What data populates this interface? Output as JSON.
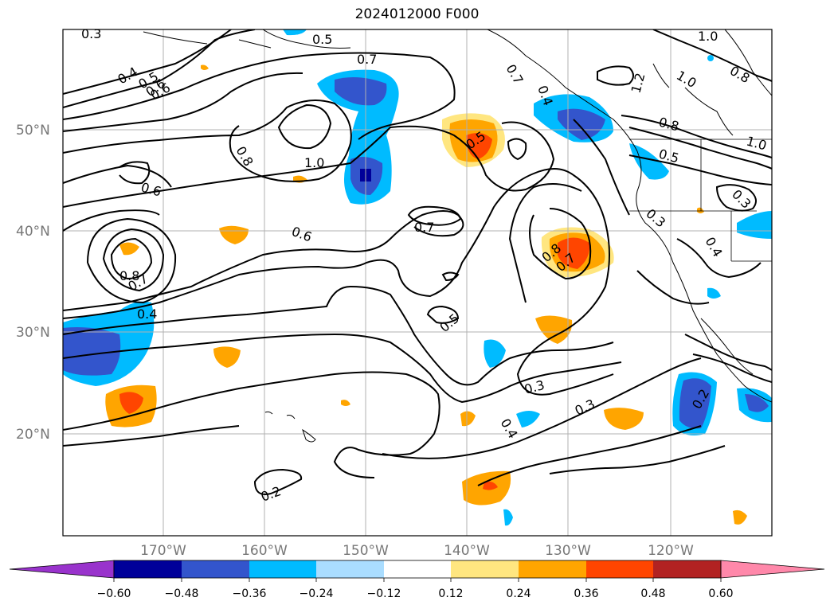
{
  "title": "2024012000 F000",
  "lat_labels": [
    "50°N",
    "40°N",
    "30°N",
    "20°N"
  ],
  "lon_labels": [
    "170°W",
    "160°W",
    "150°W",
    "140°W",
    "130°W",
    "120°W"
  ],
  "contour_labels": [
    "0.3",
    "0.5",
    "0.6",
    "0.4",
    "0.5",
    "0.6",
    "0.7",
    "0.8",
    "1.0",
    "0.6",
    "0.6",
    "0.7",
    "0.8",
    "0.7",
    "0.4",
    "0.5",
    "0.5",
    "0.8",
    "0.7",
    "0.3",
    "0.4",
    "0.3",
    "0.2",
    "0.2",
    "0.7",
    "0.4",
    "1.2",
    "1.0",
    "1.0",
    "0.8",
    "0.8",
    "0.5",
    "1.0",
    "0.3",
    "0.3",
    "0.4"
  ],
  "colorbar": {
    "colors": [
      "#9933cc",
      "#000099",
      "#3355cc",
      "#00bbff",
      "#aaddff",
      "#ffffff",
      "#ffe680",
      "#ffa500",
      "#ff4500",
      "#b22222",
      "#ff88aa"
    ],
    "tick_labels": [
      "−0.60",
      "−0.48",
      "−0.36",
      "−0.24",
      "−0.12",
      "0.12",
      "0.24",
      "0.36",
      "0.48",
      "0.60"
    ]
  },
  "colors": {
    "contour": "#000000",
    "grid": "#b0b0b0",
    "axis_label": "#777777"
  }
}
